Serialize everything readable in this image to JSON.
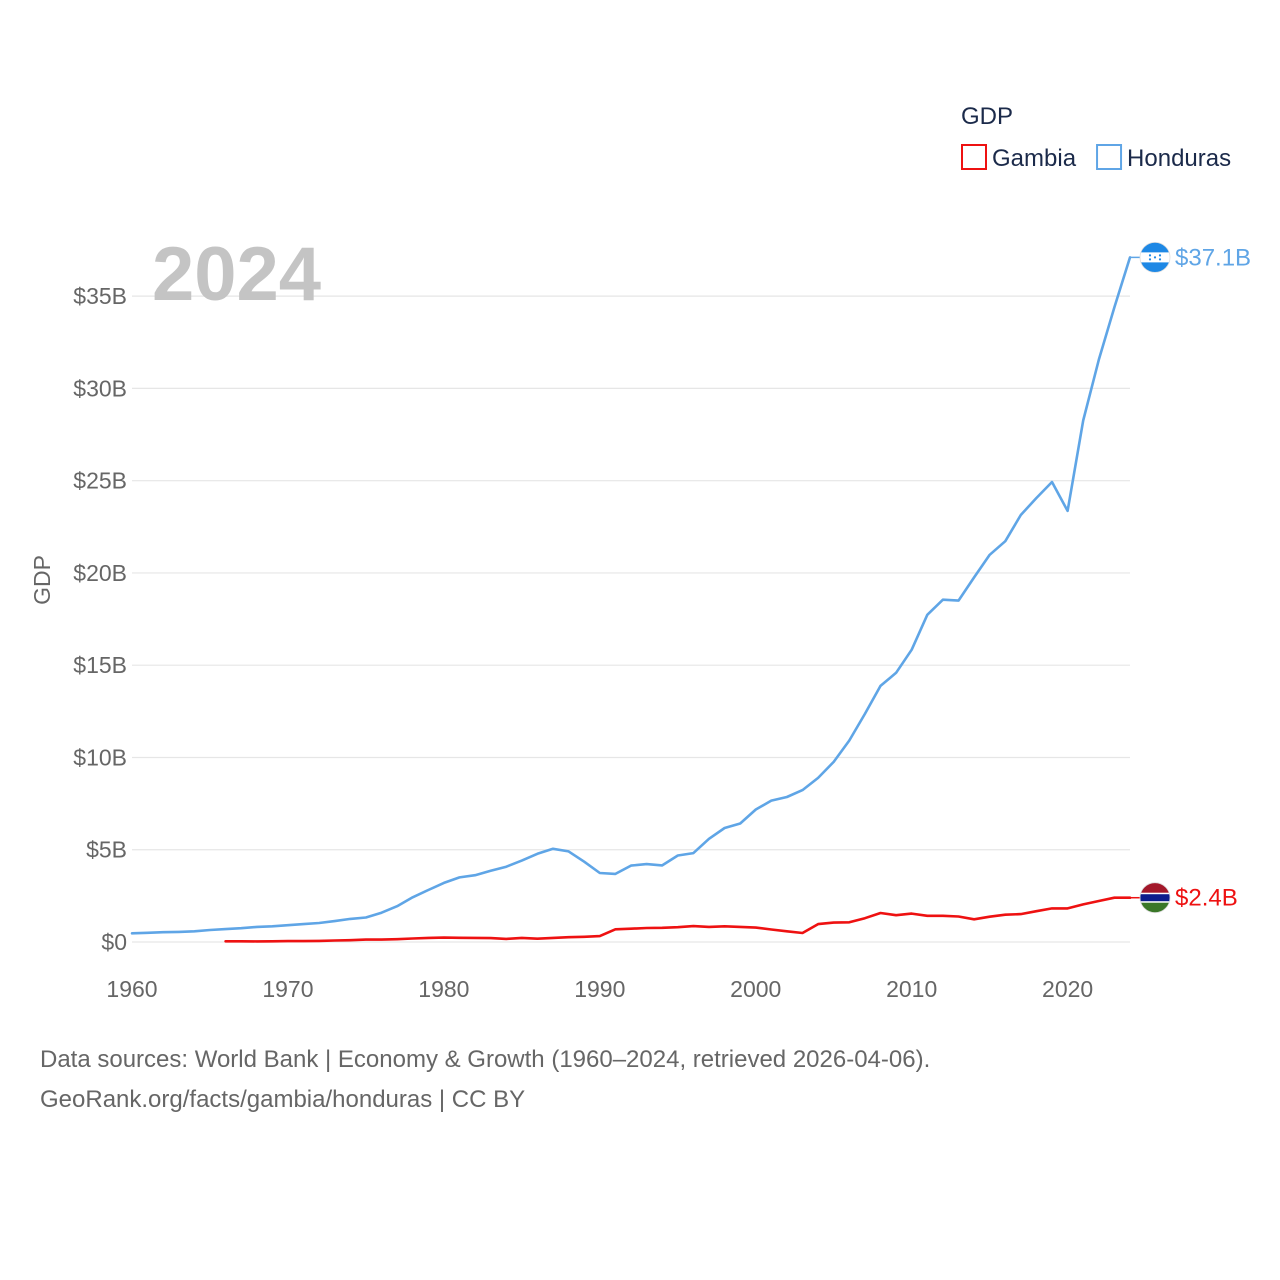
{
  "chart_data": {
    "type": "line",
    "title": "",
    "xlabel": "",
    "ylabel": "GDP",
    "year_label": "2024",
    "legend_title": "GDP",
    "legend_position": "top-right",
    "x_range": [
      1960,
      2024
    ],
    "ylim": [
      0,
      37.5
    ],
    "x_ticks": [
      1960,
      1970,
      1980,
      1990,
      2000,
      2010,
      2020
    ],
    "x_tick_labels": [
      "1960",
      "1970",
      "1980",
      "1990",
      "2000",
      "2010",
      "2020"
    ],
    "y_ticks": [
      0,
      5,
      10,
      15,
      20,
      25,
      30,
      35
    ],
    "y_tick_labels": [
      "$0",
      "$5B",
      "$10B",
      "$15B",
      "$20B",
      "$25B",
      "$30B",
      "$35B"
    ],
    "grid": true,
    "series": [
      {
        "name": "Gambia",
        "color": "#ee1111",
        "end_label": "$2.4B",
        "flag": "gambia-flag-icon",
        "x": [
          1966,
          1967,
          1968,
          1969,
          1970,
          1971,
          1972,
          1973,
          1974,
          1975,
          1976,
          1977,
          1978,
          1979,
          1980,
          1981,
          1982,
          1983,
          1984,
          1985,
          1986,
          1987,
          1988,
          1989,
          1990,
          1991,
          1992,
          1993,
          1994,
          1995,
          1996,
          1997,
          1998,
          1999,
          2000,
          2001,
          2002,
          2003,
          2004,
          2005,
          2006,
          2007,
          2008,
          2009,
          2010,
          2011,
          2012,
          2013,
          2014,
          2015,
          2016,
          2017,
          2018,
          2019,
          2020,
          2021,
          2022,
          2023,
          2024
        ],
        "values": [
          0.04,
          0.04,
          0.03,
          0.04,
          0.05,
          0.05,
          0.06,
          0.08,
          0.1,
          0.13,
          0.13,
          0.15,
          0.19,
          0.22,
          0.24,
          0.23,
          0.22,
          0.21,
          0.17,
          0.22,
          0.18,
          0.22,
          0.26,
          0.28,
          0.32,
          0.69,
          0.72,
          0.76,
          0.77,
          0.8,
          0.86,
          0.82,
          0.85,
          0.82,
          0.78,
          0.68,
          0.58,
          0.49,
          0.97,
          1.05,
          1.07,
          1.29,
          1.57,
          1.45,
          1.54,
          1.42,
          1.42,
          1.38,
          1.23,
          1.37,
          1.48,
          1.51,
          1.67,
          1.82,
          1.82,
          2.04,
          2.22,
          2.4,
          2.4
        ]
      },
      {
        "name": "Honduras",
        "color": "#5fa5e6",
        "end_label": "$37.1B",
        "flag": "honduras-flag-icon",
        "x": [
          1960,
          1961,
          1962,
          1963,
          1964,
          1965,
          1966,
          1967,
          1968,
          1969,
          1970,
          1971,
          1972,
          1973,
          1974,
          1975,
          1976,
          1977,
          1978,
          1979,
          1980,
          1981,
          1982,
          1983,
          1984,
          1985,
          1986,
          1987,
          1988,
          1989,
          1990,
          1991,
          1992,
          1993,
          1994,
          1995,
          1996,
          1997,
          1998,
          1999,
          2000,
          2001,
          2002,
          2003,
          2004,
          2005,
          2006,
          2007,
          2008,
          2009,
          2010,
          2011,
          2012,
          2013,
          2014,
          2015,
          2016,
          2017,
          2018,
          2019,
          2020,
          2021,
          2022,
          2023,
          2024
        ],
        "values": [
          0.47,
          0.5,
          0.53,
          0.55,
          0.58,
          0.65,
          0.7,
          0.75,
          0.82,
          0.85,
          0.91,
          0.97,
          1.03,
          1.13,
          1.25,
          1.33,
          1.59,
          1.94,
          2.42,
          2.82,
          3.2,
          3.5,
          3.62,
          3.86,
          4.08,
          4.41,
          4.78,
          5.05,
          4.91,
          4.35,
          3.74,
          3.69,
          4.14,
          4.22,
          4.15,
          4.69,
          4.82,
          5.59,
          6.18,
          6.42,
          7.18,
          7.66,
          7.86,
          8.23,
          8.89,
          9.76,
          10.92,
          12.36,
          13.88,
          14.59,
          15.84,
          17.73,
          18.55,
          18.5,
          19.76,
          20.98,
          21.72,
          23.14,
          24.06,
          24.93,
          23.36,
          28.26,
          31.55,
          34.4,
          37.1
        ]
      }
    ]
  },
  "footer": {
    "line1": "Data sources: World Bank | Economy & Growth (1960–2024, retrieved 2026-04-06).",
    "line2": "GeoRank.org/facts/gambia/honduras | CC BY"
  }
}
